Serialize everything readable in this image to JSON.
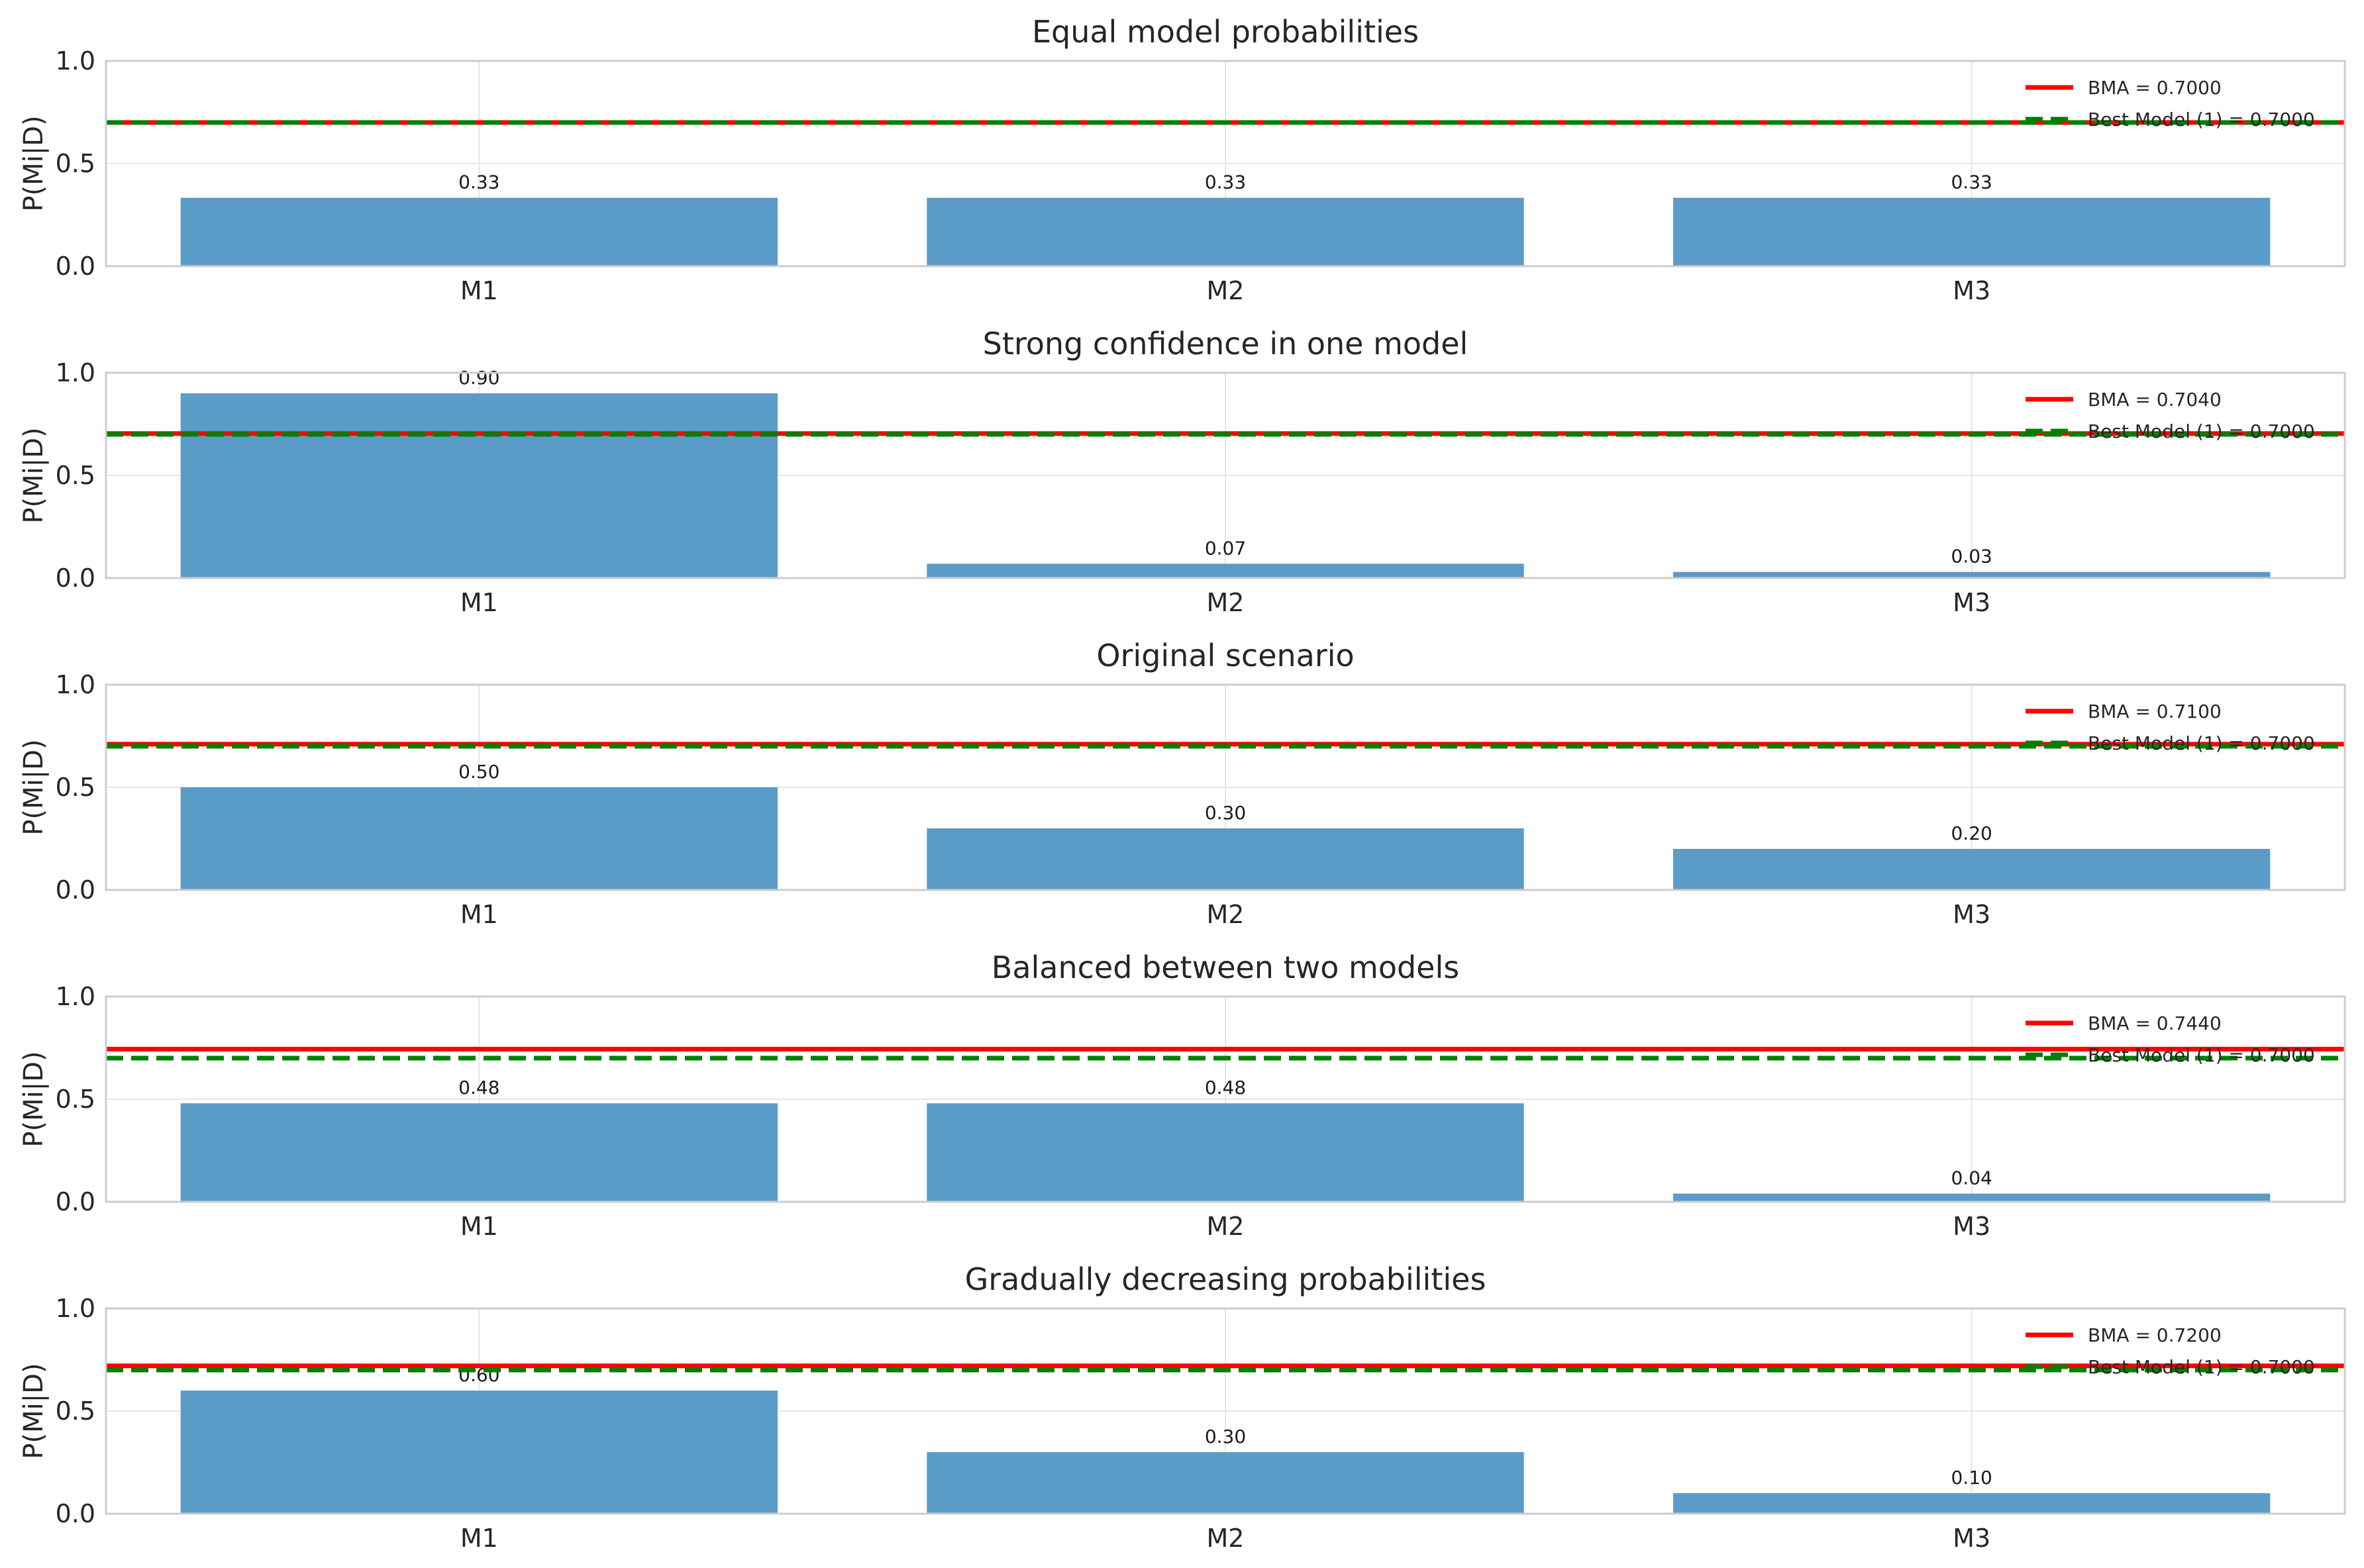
{
  "figure": {
    "background": "#ffffff",
    "bar_color": "#5b9bc8",
    "bma_color": "#ff0000",
    "best_color": "#008000",
    "grid_color": "#e6e6e6",
    "frame_color": "#cccccc"
  },
  "chart_data": [
    {
      "type": "bar",
      "title": "Equal model probabilities",
      "categories": [
        "M1",
        "M2",
        "M3"
      ],
      "values": [
        0.3333,
        0.3333,
        0.3333
      ],
      "value_labels": [
        "0.33",
        "0.33",
        "0.33"
      ],
      "ylabel": "P(Mi|D)",
      "ylim": [
        0,
        1
      ],
      "yticks": [
        "0.0",
        "0.5",
        "1.0"
      ],
      "grid": true,
      "legend_position": "top-right",
      "lines": [
        {
          "name": "BMA",
          "label": "BMA = 0.7000",
          "value": 0.7,
          "style": "solid",
          "color": "#ff0000"
        },
        {
          "name": "Best Model",
          "label": "Best Model (1) = 0.7000",
          "value": 0.7,
          "style": "dashed",
          "color": "#008000"
        }
      ]
    },
    {
      "type": "bar",
      "title": "Strong confidence in one model",
      "categories": [
        "M1",
        "M2",
        "M3"
      ],
      "values": [
        0.9,
        0.07,
        0.03
      ],
      "value_labels": [
        "0.90",
        "0.07",
        "0.03"
      ],
      "ylabel": "P(Mi|D)",
      "ylim": [
        0,
        1
      ],
      "yticks": [
        "0.0",
        "0.5",
        "1.0"
      ],
      "grid": true,
      "legend_position": "top-right",
      "lines": [
        {
          "name": "BMA",
          "label": "BMA = 0.7040",
          "value": 0.704,
          "style": "solid",
          "color": "#ff0000"
        },
        {
          "name": "Best Model",
          "label": "Best Model (1) = 0.7000",
          "value": 0.7,
          "style": "dashed",
          "color": "#008000"
        }
      ]
    },
    {
      "type": "bar",
      "title": "Original scenario",
      "categories": [
        "M1",
        "M2",
        "M3"
      ],
      "values": [
        0.5,
        0.3,
        0.2
      ],
      "value_labels": [
        "0.50",
        "0.30",
        "0.20"
      ],
      "ylabel": "P(Mi|D)",
      "ylim": [
        0,
        1
      ],
      "yticks": [
        "0.0",
        "0.5",
        "1.0"
      ],
      "grid": true,
      "legend_position": "top-right",
      "lines": [
        {
          "name": "BMA",
          "label": "BMA = 0.7100",
          "value": 0.71,
          "style": "solid",
          "color": "#ff0000"
        },
        {
          "name": "Best Model",
          "label": "Best Model (1) = 0.7000",
          "value": 0.7,
          "style": "dashed",
          "color": "#008000"
        }
      ]
    },
    {
      "type": "bar",
      "title": "Balanced between two models",
      "categories": [
        "M1",
        "M2",
        "M3"
      ],
      "values": [
        0.48,
        0.48,
        0.04
      ],
      "value_labels": [
        "0.48",
        "0.48",
        "0.04"
      ],
      "ylabel": "P(Mi|D)",
      "ylim": [
        0,
        1
      ],
      "yticks": [
        "0.0",
        "0.5",
        "1.0"
      ],
      "grid": true,
      "legend_position": "top-right",
      "lines": [
        {
          "name": "BMA",
          "label": "BMA = 0.7440",
          "value": 0.744,
          "style": "solid",
          "color": "#ff0000"
        },
        {
          "name": "Best Model",
          "label": "Best Model (1) = 0.7000",
          "value": 0.7,
          "style": "dashed",
          "color": "#008000"
        }
      ]
    },
    {
      "type": "bar",
      "title": "Gradually decreasing probabilities",
      "categories": [
        "M1",
        "M2",
        "M3"
      ],
      "values": [
        0.6,
        0.3,
        0.1
      ],
      "value_labels": [
        "0.60",
        "0.30",
        "0.10"
      ],
      "ylabel": "P(Mi|D)",
      "ylim": [
        0,
        1
      ],
      "yticks": [
        "0.0",
        "0.5",
        "1.0"
      ],
      "grid": true,
      "legend_position": "top-right",
      "lines": [
        {
          "name": "BMA",
          "label": "BMA = 0.7200",
          "value": 0.72,
          "style": "solid",
          "color": "#ff0000"
        },
        {
          "name": "Best Model",
          "label": "Best Model (1) = 0.7000",
          "value": 0.7,
          "style": "dashed",
          "color": "#008000"
        }
      ]
    }
  ]
}
